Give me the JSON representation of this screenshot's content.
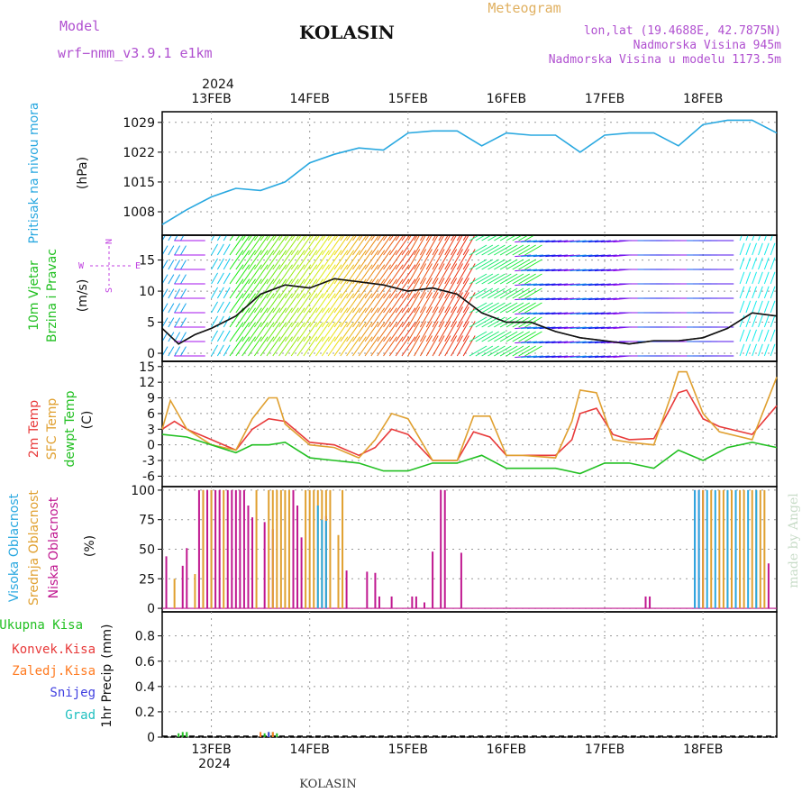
{
  "header": {
    "model_label": "Model",
    "model_name": "wrf−nmm_v3.9.1  e1km",
    "station": "KOLASIN",
    "product": "Meteogram",
    "lonlat": "lon,lat (19.4688E, 42.7875N)",
    "elevation": "Nadmorska Visina 945m",
    "model_elevation": "Nadmorska Visina u modelu 1173.5m",
    "footer_station": "KOLASIN",
    "watermark": "made by Angel"
  },
  "time_axis": {
    "year": "2024",
    "day_labels": [
      "13FEB",
      "14FEB",
      "15FEB",
      "16FEB",
      "17FEB",
      "18FEB"
    ]
  },
  "colors": {
    "pressure": "#29a8e0",
    "temp2m": "#e83a3a",
    "sfc_temp": "#e0a030",
    "dewpoint": "#22c022",
    "visoka": "#29a8e0",
    "srednja": "#e0a030",
    "niska": "#c01890",
    "ukupna": "#22c022",
    "konvek": "#e83a3a",
    "zaledj": "#ff7a20",
    "snijeg": "#4040e0",
    "grad": "#20c0c0",
    "wind_label": "#c040e0",
    "header_purple": "#b050d0",
    "header_orange": "#e0b060"
  },
  "chart_data": [
    {
      "id": "pressure",
      "type": "line",
      "ylabel": "Pritisak na nivou mora",
      "unit": "(hPa)",
      "yticks": [
        1008,
        1015,
        1022,
        1029
      ],
      "ylim": [
        1002.5,
        1031.5
      ],
      "x_unit": "hours from 12 FEB 12:00",
      "series": [
        {
          "x": [
            0,
            6,
            12,
            18,
            24,
            30,
            36,
            42,
            48,
            54,
            60,
            66,
            72,
            78,
            84,
            90,
            96,
            102,
            108,
            114,
            120,
            126,
            132,
            138,
            144,
            150
          ],
          "values": [
            1005,
            1008.5,
            1011.5,
            1013.5,
            1013,
            1015,
            1019.5,
            1021.5,
            1023,
            1022.5,
            1026.5,
            1027,
            1027,
            1023.5,
            1026.5,
            1026,
            1026,
            1022,
            1026,
            1026.5,
            1026.5,
            1023.5,
            1028.5,
            1029.5,
            1029.5,
            1026.5
          ]
        }
      ]
    },
    {
      "id": "wind",
      "type": "line",
      "ylabel": "10m Vjetar",
      "ylabel2": "Brzina i Pravac",
      "unit": "(m/s)",
      "yticks": [
        0,
        5,
        10,
        15
      ],
      "ylim": [
        -1.3,
        19
      ],
      "compass": {
        "n": "N",
        "s": "S",
        "e": "E",
        "w": "W"
      },
      "series": [
        {
          "name": "speed",
          "x": [
            0,
            4,
            8,
            12,
            18,
            24,
            30,
            36,
            42,
            48,
            54,
            60,
            66,
            72,
            78,
            84,
            90,
            96,
            102,
            108,
            114,
            120,
            126,
            132,
            138,
            144,
            150
          ],
          "values": [
            4,
            1.5,
            3,
            4,
            6,
            9.5,
            11,
            10.5,
            12,
            11.5,
            11,
            10,
            10.5,
            9.5,
            6.5,
            5,
            5,
            3.5,
            2.5,
            2,
            1.5,
            2,
            2,
            2.5,
            4,
            6.5,
            6
          ]
        }
      ]
    },
    {
      "id": "temperature",
      "type": "line",
      "ylabel_a": "2m Temp",
      "ylabel_b": "SFC Temp",
      "ylabel_c": "dewpt Temp",
      "unit": "(C)",
      "yticks": [
        -6,
        -3,
        0,
        3,
        6,
        9,
        12,
        15
      ],
      "ylim": [
        -8,
        16
      ],
      "series": [
        {
          "name": "2m Temp",
          "x": [
            0,
            3,
            6,
            12,
            18,
            22,
            26,
            30,
            36,
            42,
            48,
            52,
            56,
            60,
            66,
            72,
            76,
            80,
            84,
            88,
            96,
            100,
            102,
            106,
            110,
            114,
            120,
            124,
            126,
            128,
            132,
            136,
            144,
            150
          ],
          "values": [
            3,
            4.5,
            3,
            1,
            -1,
            3,
            5,
            4.5,
            0.5,
            0,
            -2,
            -0.5,
            3,
            2,
            -3,
            -3,
            2.5,
            1.5,
            -2,
            -2,
            -2,
            1,
            6,
            7,
            2,
            1,
            1.2,
            7,
            10,
            10.5,
            5,
            3.5,
            2,
            7.5
          ]
        },
        {
          "name": "SFC Temp",
          "x": [
            0,
            2,
            6,
            12,
            18,
            22,
            26,
            28,
            30,
            36,
            42,
            48,
            52,
            56,
            60,
            66,
            72,
            76,
            80,
            84,
            88,
            96,
            100,
            102,
            106,
            110,
            114,
            120,
            124,
            126,
            128,
            132,
            136,
            144,
            150
          ],
          "values": [
            3,
            8.5,
            3,
            0,
            -1,
            5,
            9,
            9,
            4,
            0,
            -0.5,
            -2.5,
            1,
            6,
            5,
            -3,
            -3,
            5.5,
            5.5,
            -2,
            -2,
            -2.5,
            4.5,
            10.5,
            10,
            1,
            0.5,
            0,
            9,
            14,
            14,
            6,
            2.5,
            1,
            13
          ]
        },
        {
          "name": "dewpt Temp",
          "x": [
            0,
            6,
            12,
            18,
            22,
            26,
            30,
            36,
            42,
            48,
            54,
            60,
            66,
            72,
            78,
            84,
            90,
            96,
            102,
            108,
            114,
            120,
            126,
            132,
            138,
            144,
            150
          ],
          "values": [
            2,
            1.5,
            0,
            -1.5,
            0,
            0,
            0.5,
            -2.5,
            -3,
            -3.5,
            -5,
            -5,
            -3.5,
            -3.5,
            -2,
            -4.5,
            -4.5,
            -4.5,
            -5.5,
            -3.5,
            -3.5,
            -4.5,
            -1,
            -3,
            -0.5,
            0.5,
            -0.5
          ]
        }
      ]
    },
    {
      "id": "cloud",
      "type": "bar",
      "ylabel_a": "Visoka Oblacnost",
      "ylabel_b": "Srednja Oblacnost",
      "ylabel_c": "Niska Oblacnost",
      "unit": "(%)",
      "yticks": [
        0,
        25,
        50,
        75,
        100
      ],
      "ylim": [
        -3,
        103
      ],
      "series": [
        {
          "name": "Niska Oblacnost",
          "x": [
            1,
            5,
            6,
            9,
            10,
            11,
            12,
            13,
            14,
            16,
            17,
            18,
            19,
            20,
            21,
            22,
            25,
            27,
            32,
            33,
            34,
            40,
            45,
            50,
            52,
            53,
            56,
            61,
            62,
            64,
            66,
            68,
            69,
            73,
            118,
            119,
            130,
            131,
            132,
            148
          ],
          "values": [
            44,
            36,
            51,
            100,
            100,
            100,
            100,
            100,
            100,
            100,
            100,
            100,
            100,
            100,
            87,
            77,
            73,
            67,
            100,
            87,
            60,
            78,
            32,
            31,
            30,
            10,
            10,
            10,
            10,
            5,
            48,
            100,
            100,
            47,
            10,
            10,
            100,
            100,
            100,
            38
          ]
        },
        {
          "name": "Srednja Oblacnost",
          "x": [
            3,
            8,
            10,
            12,
            15,
            23,
            26,
            27,
            28,
            29,
            30,
            31,
            35,
            36,
            37,
            38,
            39,
            40,
            41,
            43,
            44,
            132,
            134,
            136,
            137,
            138,
            139,
            140,
            141,
            142,
            144,
            145,
            146,
            147
          ],
          "values": [
            25,
            29,
            100,
            100,
            100,
            100,
            100,
            100,
            100,
            100,
            100,
            100,
            100,
            100,
            100,
            100,
            100,
            100,
            100,
            62,
            100,
            100,
            100,
            100,
            100,
            100,
            100,
            100,
            100,
            100,
            100,
            100,
            100,
            100
          ]
        },
        {
          "name": "Visoka Oblacnost",
          "x": [
            38,
            39,
            40,
            130,
            131,
            133,
            135,
            138,
            140,
            143,
            145
          ],
          "values": [
            87,
            75,
            74,
            100,
            100,
            100,
            100,
            100,
            100,
            100,
            100
          ]
        }
      ]
    },
    {
      "id": "precip",
      "type": "bar",
      "ylabel": "1hr Precip",
      "unit": "(mm)",
      "yticks": [
        0,
        0.2,
        0.4,
        0.6,
        0.8
      ],
      "ylim": [
        0,
        0.99
      ],
      "legend": [
        "Ukupna Kisa",
        "Konvek.Kisa",
        "Zaledj.Kisa",
        "Snijeg",
        "Grad"
      ],
      "series": [
        {
          "name": "Ukupna Kisa",
          "x": [
            4,
            5,
            6,
            25,
            26,
            27,
            28
          ],
          "values": [
            0.03,
            0.04,
            0.04,
            0.03,
            0.04,
            0.04,
            0.03
          ]
        },
        {
          "name": "Zaledj.Kisa",
          "x": [
            24,
            27
          ],
          "values": [
            0.04,
            0.04
          ]
        },
        {
          "name": "Snijeg",
          "x": [
            26
          ],
          "values": [
            0.04
          ]
        }
      ]
    }
  ]
}
